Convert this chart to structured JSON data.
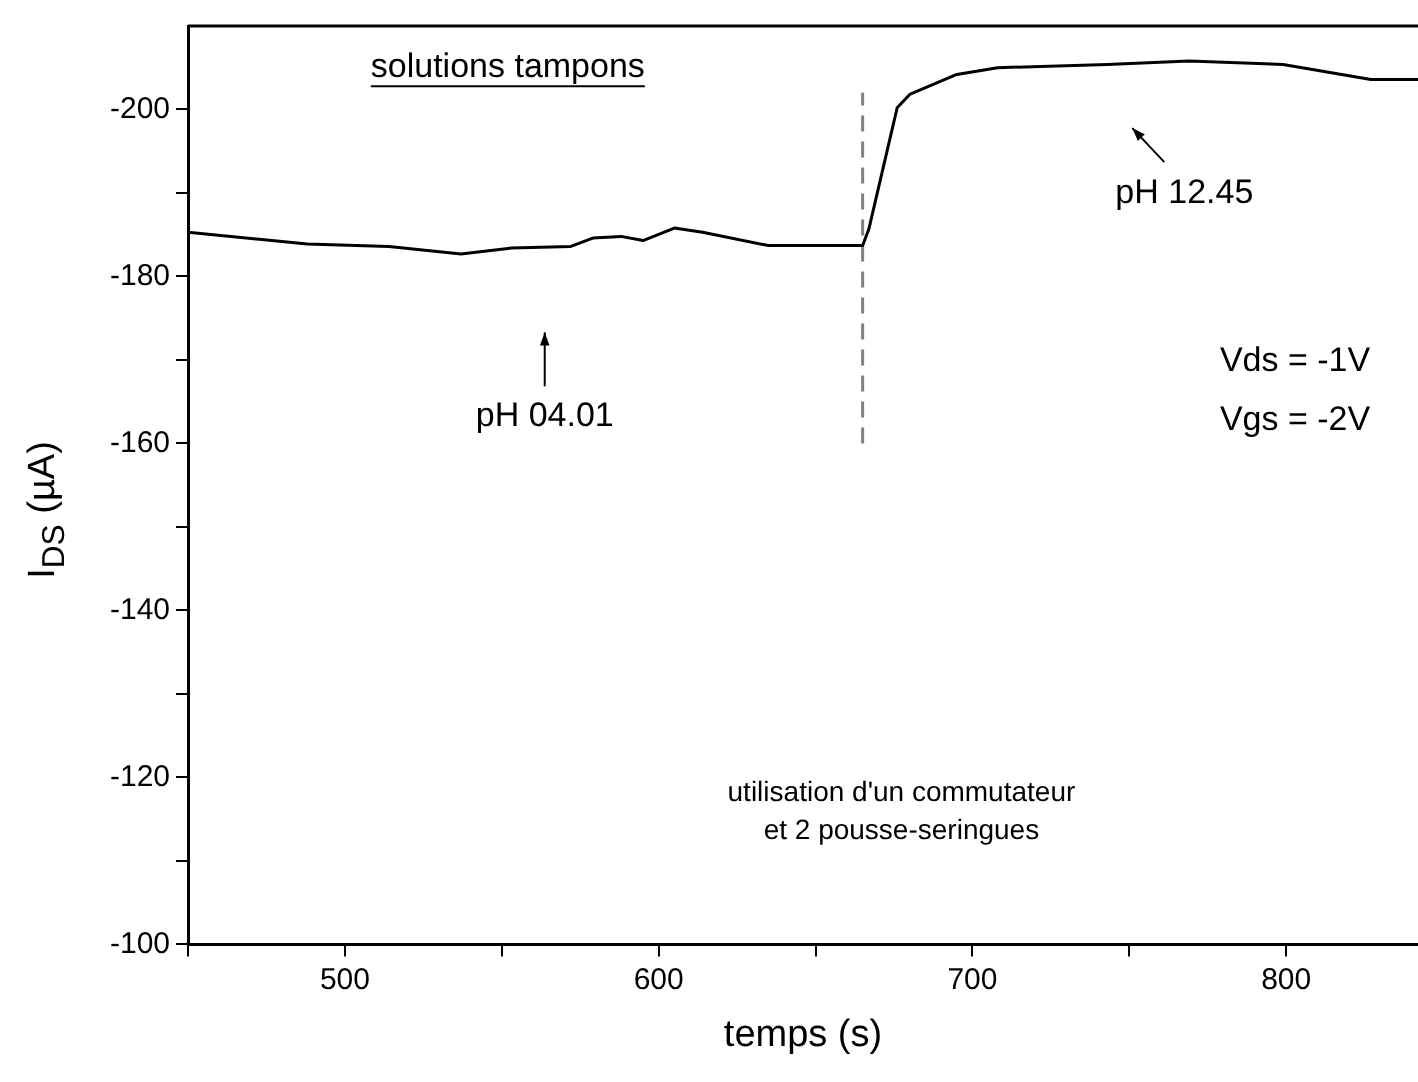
{
  "chart_data": {
    "type": "line",
    "xlabel": "temps (s)",
    "ylabel": "I$_{DS}$ (µA)",
    "xlim": [
      450,
      842
    ],
    "ylim": [
      -100,
      -210
    ],
    "xticks": [
      {
        "value": 450,
        "label": null
      },
      500,
      {
        "value": 550,
        "label": null
      },
      600,
      {
        "value": 650,
        "label": null
      },
      700,
      {
        "value": 750,
        "label": null
      },
      800
    ],
    "yticks": [
      -100,
      {
        "value": -110,
        "label": null
      },
      -120,
      {
        "value": -130,
        "label": null
      },
      -140,
      {
        "value": -150,
        "label": null
      },
      -160,
      {
        "value": -170,
        "label": null
      },
      -180,
      {
        "value": -190,
        "label": null
      },
      -200
    ],
    "grid": false,
    "legend": false,
    "marker": "none",
    "series": [
      {
        "color": "#000000",
        "x": [
          450,
          488,
          514,
          537,
          553,
          572,
          579,
          588,
          595,
          605,
          614,
          635,
          665,
          667,
          676,
          680,
          695,
          708,
          743,
          769,
          799,
          827,
          842
        ],
        "values": [
          -185.3,
          -183.9,
          -183.6,
          -182.7,
          -183.4,
          -183.6,
          -184.6,
          -184.8,
          -184.3,
          -185.8,
          -185.3,
          -183.7,
          -183.7,
          -185.7,
          -200.2,
          -201.8,
          -204.2,
          -205,
          -205.4,
          -205.8,
          -205.4,
          -203.6,
          -203.6
        ]
      },
      {
        "type": "line",
        "color": "#808080",
        "line_style": "dashed",
        "x": [
          665,
          665
        ],
        "values": [
          -160,
          -202
        ]
      }
    ],
    "annotations": [
      "pH 04.01",
      "pH 12.45",
      "solutions tampons",
      "Vds = -1V",
      "Vgs = -2V",
      "utilisation d'un commutateur\net 2 pousse-seringues"
    ]
  }
}
